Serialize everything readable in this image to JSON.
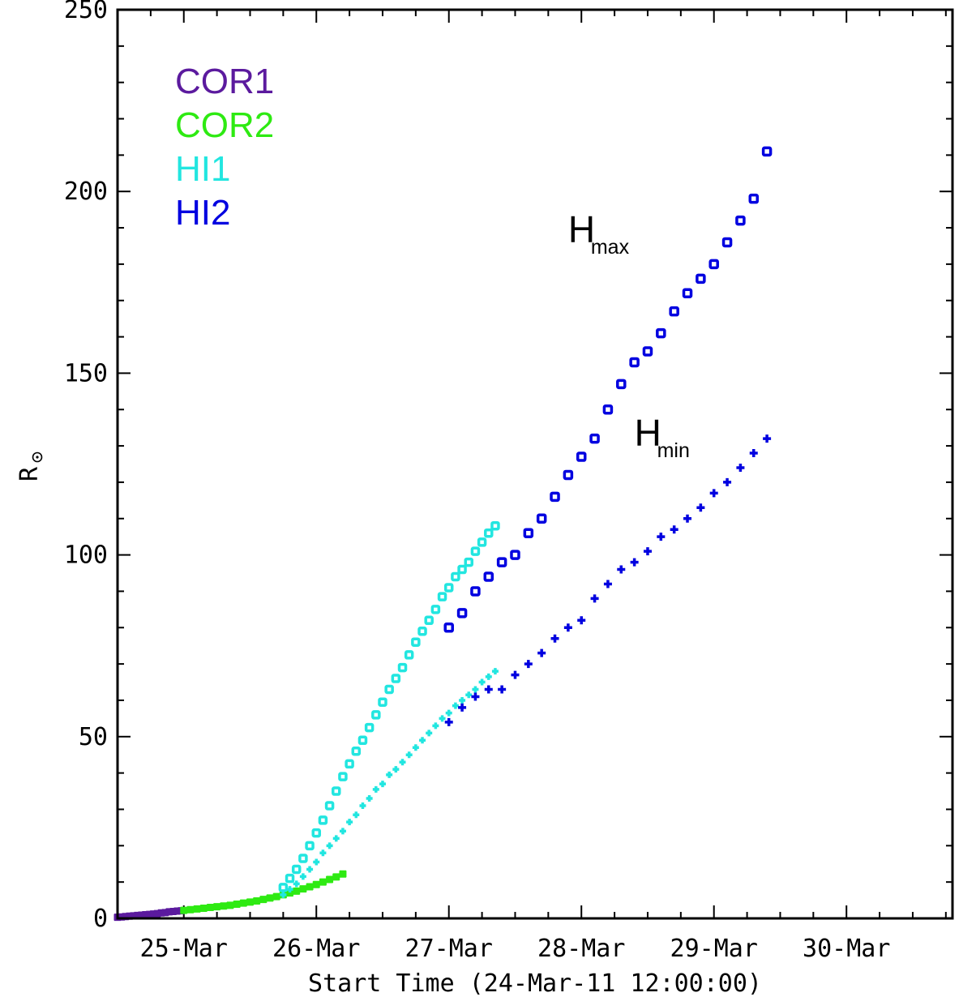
{
  "chart_data": {
    "type": "scatter",
    "xlabel": "Start Time (24-Mar-11 12:00:00)",
    "ylabel": "R",
    "ylabel_symbol": "sun-symbol",
    "x_unit": "days since 24-Mar-11 12:00",
    "xlim": [
      0.0,
      6.3
    ],
    "ylim": [
      0,
      250
    ],
    "x_tick_labels": [
      "25-Mar",
      "26-Mar",
      "27-Mar",
      "28-Mar",
      "29-Mar",
      "30-Mar"
    ],
    "x_tick_positions": [
      0.5,
      1.5,
      2.5,
      3.5,
      4.5,
      5.5
    ],
    "y_ticks": [
      0,
      50,
      100,
      150,
      200,
      250
    ],
    "grid": false,
    "legend_position": "top-left",
    "legend": [
      {
        "label": "COR1",
        "color": "#5B1A9E"
      },
      {
        "label": "COR2",
        "color": "#2EEA12"
      },
      {
        "label": "HI1",
        "color": "#22E6E0"
      },
      {
        "label": "HI2",
        "color": "#0000E0"
      }
    ],
    "annotations": [
      {
        "main": "H",
        "sub": "max",
        "x": 3.4,
        "y": 186
      },
      {
        "main": "H",
        "sub": "min",
        "x": 3.9,
        "y": 130
      }
    ],
    "series": [
      {
        "name": "COR1",
        "marker": "plus",
        "color": "#5B1A9E",
        "x": [
          0.0,
          0.03,
          0.06,
          0.09,
          0.12,
          0.15,
          0.18,
          0.21,
          0.24,
          0.27,
          0.3,
          0.33,
          0.36,
          0.39,
          0.42,
          0.45,
          0.48
        ],
        "y": [
          0.3,
          0.4,
          0.5,
          0.6,
          0.7,
          0.8,
          0.9,
          1.0,
          1.1,
          1.2,
          1.3,
          1.5,
          1.6,
          1.8,
          1.9,
          2.0,
          2.1
        ]
      },
      {
        "name": "COR2",
        "marker": "plus",
        "color": "#2EEA12",
        "x": [
          0.5,
          0.55,
          0.6,
          0.65,
          0.7,
          0.75,
          0.8,
          0.85,
          0.9,
          0.95,
          1.0,
          1.05,
          1.1,
          1.15,
          1.2,
          1.25,
          1.3,
          1.35,
          1.4,
          1.45,
          1.5,
          1.55,
          1.6,
          1.65,
          1.7
        ],
        "y": [
          2.2,
          2.4,
          2.6,
          2.8,
          3.0,
          3.2,
          3.4,
          3.6,
          3.9,
          4.2,
          4.5,
          4.8,
          5.2,
          5.6,
          6.0,
          6.5,
          7.0,
          7.5,
          8.1,
          8.7,
          9.3,
          10.0,
          10.7,
          11.4,
          12.2
        ]
      },
      {
        "name": "HI1 max",
        "marker": "square",
        "color": "#22E6E0",
        "x": [
          1.25,
          1.3,
          1.35,
          1.4,
          1.45,
          1.5,
          1.55,
          1.6,
          1.65,
          1.7,
          1.75,
          1.8,
          1.85,
          1.9,
          1.95,
          2.0,
          2.05,
          2.1,
          2.15,
          2.2,
          2.25,
          2.3,
          2.35,
          2.4,
          2.45,
          2.5,
          2.55,
          2.6,
          2.65,
          2.7,
          2.75,
          2.8,
          2.85
        ],
        "y": [
          8.5,
          11.0,
          13.5,
          16.5,
          20.0,
          23.5,
          27.0,
          31.0,
          35.0,
          39.0,
          42.5,
          46.0,
          49.0,
          52.5,
          56.0,
          59.5,
          63.0,
          66.0,
          69.0,
          72.5,
          76.0,
          79.0,
          82.0,
          85.0,
          88.5,
          91.0,
          94.0,
          96.0,
          98.0,
          101.0,
          103.5,
          106.0,
          108.0
        ]
      },
      {
        "name": "HI1 min",
        "marker": "plus",
        "color": "#22E6E0",
        "x": [
          1.25,
          1.3,
          1.35,
          1.4,
          1.45,
          1.5,
          1.55,
          1.6,
          1.65,
          1.7,
          1.75,
          1.8,
          1.85,
          1.9,
          1.95,
          2.0,
          2.05,
          2.1,
          2.15,
          2.2,
          2.25,
          2.3,
          2.35,
          2.4,
          2.45,
          2.5,
          2.55,
          2.6,
          2.65,
          2.7,
          2.75,
          2.8,
          2.85
        ],
        "y": [
          6.5,
          8.0,
          9.5,
          11.5,
          13.5,
          15.5,
          18.0,
          20.0,
          22.0,
          24.0,
          26.5,
          28.5,
          31.0,
          33.0,
          35.5,
          37.0,
          39.5,
          41.0,
          43.0,
          45.0,
          47.0,
          49.0,
          51.0,
          53.0,
          55.0,
          56.5,
          58.5,
          60.0,
          61.5,
          63.0,
          65.0,
          66.5,
          68.0
        ]
      },
      {
        "name": "HI2 max",
        "marker": "square",
        "color": "#0000E0",
        "x": [
          2.5,
          2.6,
          2.7,
          2.8,
          2.9,
          3.0,
          3.1,
          3.2,
          3.3,
          3.4,
          3.5,
          3.6,
          3.7,
          3.8,
          3.9,
          4.0,
          4.1,
          4.2,
          4.3,
          4.4,
          4.5,
          4.6,
          4.7,
          4.8,
          4.9
        ],
        "y": [
          80,
          84,
          90,
          94,
          98,
          100,
          106,
          110,
          116,
          122,
          127,
          132,
          140,
          147,
          153,
          156,
          161,
          167,
          172,
          176,
          180,
          186,
          192,
          198,
          211
        ]
      },
      {
        "name": "HI2 min",
        "marker": "plus",
        "color": "#0000E0",
        "x": [
          2.5,
          2.6,
          2.7,
          2.8,
          2.9,
          3.0,
          3.1,
          3.2,
          3.3,
          3.4,
          3.5,
          3.6,
          3.7,
          3.8,
          3.9,
          4.0,
          4.1,
          4.2,
          4.3,
          4.4,
          4.5,
          4.6,
          4.7,
          4.8,
          4.9
        ],
        "y": [
          54,
          58,
          61,
          63,
          63,
          67,
          70,
          73,
          77,
          80,
          82,
          88,
          92,
          96,
          98,
          101,
          105,
          107,
          110,
          113,
          117,
          120,
          124,
          128,
          132
        ]
      }
    ]
  }
}
